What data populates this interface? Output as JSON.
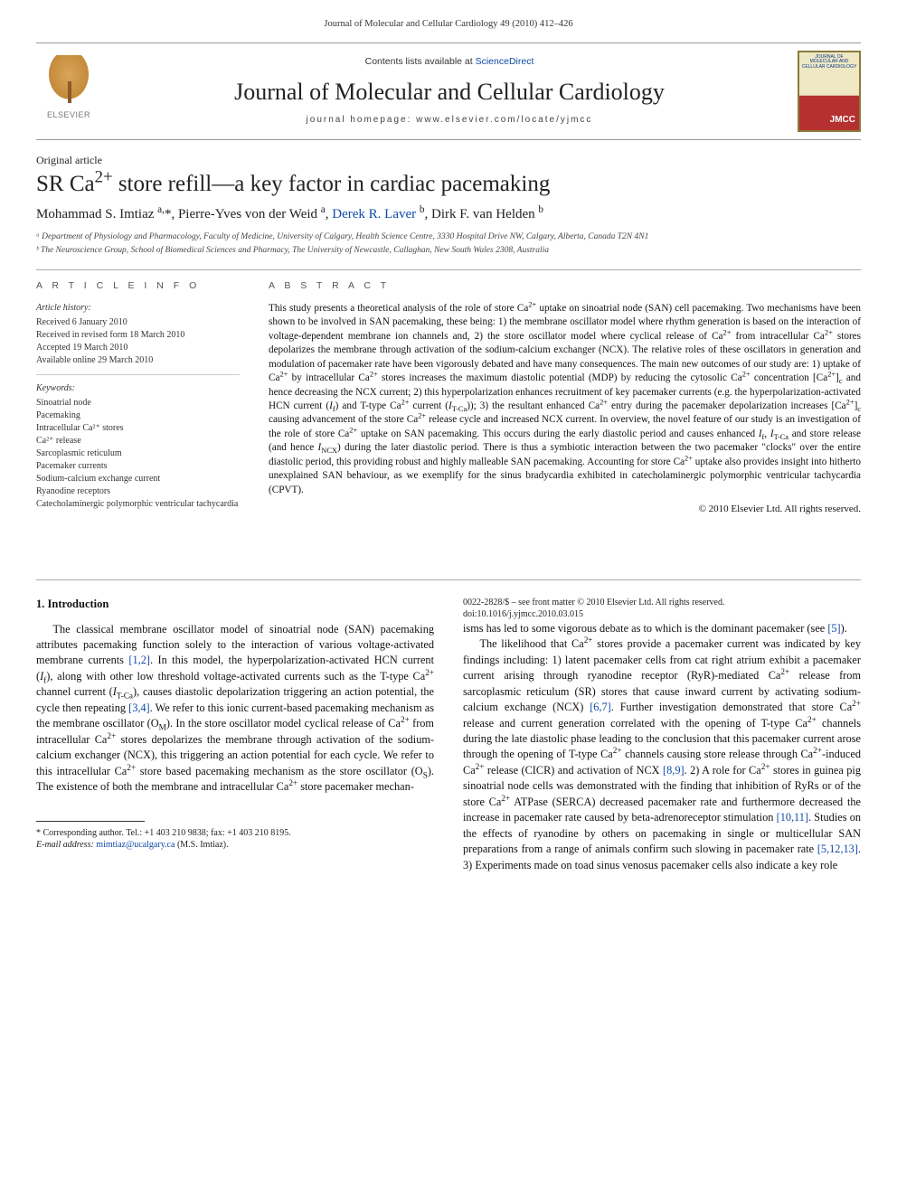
{
  "header": {
    "running": "Journal of Molecular and Cellular Cardiology 49 (2010) 412–426"
  },
  "masthead": {
    "elsevier": "ELSEVIER",
    "contents_line_pre": "Contents lists available at ",
    "sciencedirect": "ScienceDirect",
    "journal_name": "Journal of Molecular and Cellular Cardiology",
    "homepage_line": "journal homepage: www.elsevier.com/locate/yjmcc",
    "cover_caption": "JOURNAL OF MOLECULAR AND CELLULAR CARDIOLOGY"
  },
  "article": {
    "type": "Original article",
    "title_html": "SR Ca<sup>2+</sup> store refill—a key factor in cardiac pacemaking",
    "authors_html": "Mohammad S. Imtiaz <sup>a,</sup>*, Pierre-Yves von der Weid <sup>a</sup>, <a href=\"#\">Derek R. Laver</a> <sup>b</sup>, Dirk F. van Helden <sup>b</sup>",
    "affiliations": [
      "ᵃ Department of Physiology and Pharmacology, Faculty of Medicine, University of Calgary, Health Science Centre, 3330 Hospital Drive NW, Calgary, Alberta, Canada T2N 4N1",
      "ᵇ The Neuroscience Group, School of Biomedical Sciences and Pharmacy, The University of Newcastle, Callaghan, New South Wales 2308, Australia"
    ]
  },
  "meta": {
    "header": "A R T I C L E   I N F O",
    "history_label": "Article history:",
    "history": [
      "Received 6 January 2010",
      "Received in revised form 18 March 2010",
      "Accepted 19 March 2010",
      "Available online 29 March 2010"
    ],
    "keywords_label": "Keywords:",
    "keywords": [
      "Sinoatrial node",
      "Pacemaking",
      "Intracellular Ca²⁺ stores",
      "Ca²⁺ release",
      "Sarcoplasmic reticulum",
      "Pacemaker currents",
      "Sodium-calcium exchange current",
      "Ryanodine receptors",
      "Catecholaminergic polymorphic ventricular tachycardia"
    ]
  },
  "abstract": {
    "header": "A B S T R A C T",
    "text_html": "This study presents a theoretical analysis of the role of store Ca<sup>2+</sup> uptake on sinoatrial node (SAN) cell pacemaking. Two mechanisms have been shown to be involved in SAN pacemaking, these being: 1) the membrane oscillator model where rhythm generation is based on the interaction of voltage-dependent membrane ion channels and, 2) the store oscillator model where cyclical release of Ca<sup>2+</sup> from intracellular Ca<sup>2+</sup> stores depolarizes the membrane through activation of the sodium-calcium exchanger (NCX). The relative roles of these oscillators in generation and modulation of pacemaker rate have been vigorously debated and have many consequences. The main new outcomes of our study are: 1) uptake of Ca<sup>2+</sup> by intracellular Ca<sup>2+</sup> stores increases the maximum diastolic potential (MDP) by reducing the cytosolic Ca<sup>2+</sup> concentration [Ca<sup>2+</sup>]<sub>c</sub> and hence decreasing the NCX current; 2) this hyperpolarization enhances recruitment of key pacemaker currents (e.g. the hyperpolarization-activated HCN current (<i>I</i><sub>f</sub>) and T-type Ca<sup>2+</sup> current (<i>I</i><sub>T-Ca</sub>)); 3) the resultant enhanced Ca<sup>2+</sup> entry during the pacemaker depolarization increases [Ca<sup>2+</sup>]<sub>c</sub> causing advancement of the store Ca<sup>2+</sup> release cycle and increased NCX current. In overview, the novel feature of our study is an investigation of the role of store Ca<sup>2+</sup> uptake on SAN pacemaking. This occurs during the early diastolic period and causes enhanced <i>I</i><sub>f</sub>, <i>I</i><sub>T-Ca</sub> and store release (and hence <i>I</i><sub>NCX</sub>) during the later diastolic period. There is thus a symbiotic interaction between the two pacemaker \"clocks\" over the entire diastolic period, this providing robust and highly malleable SAN pacemaking. Accounting for store Ca<sup>2+</sup> uptake also provides insight into hitherto unexplained SAN behaviour, as we exemplify for the sinus bradycardia exhibited in catecholaminergic polymorphic ventricular tachycardia (CPVT).",
    "copyright": "© 2010 Elsevier Ltd. All rights reserved."
  },
  "body": {
    "section_head": "1. Introduction",
    "p1_html": "The classical membrane oscillator model of sinoatrial node (SAN) pacemaking attributes pacemaking function solely to the interaction of various voltage-activated membrane currents <a class=\"cite\" href=\"#\">[1,2]</a>. In this model, the hyperpolarization-activated HCN current (<i>I</i><sub>f</sub>), along with other low threshold voltage-activated currents such as the T-type Ca<sup>2+</sup> channel current (<i>I</i><sub>T-Ca</sub>), causes diastolic depolarization triggering an action potential, the cycle then repeating <a class=\"cite\" href=\"#\">[3,4]</a>. We refer to this ionic current-based pacemaking mechanism as the membrane oscillator (O<sub>M</sub>). In the store oscillator model cyclical release of Ca<sup>2+</sup> from intracellular Ca<sup>2+</sup> stores depolarizes the membrane through activation of the sodium-calcium exchanger (NCX), this triggering an action potential for each cycle. We refer to this intracellular Ca<sup>2+</sup> store based pacemaking mechanism as the store oscillator (O<sub>S</sub>). The existence of both the membrane and intracellular Ca<sup>2+</sup> store pacemaker mechan-",
    "p2_html": "isms has led to some vigorous debate as to which is the dominant pacemaker (see <a class=\"cite\" href=\"#\">[5]</a>).",
    "p3_html": "The likelihood that Ca<sup>2+</sup> stores provide a pacemaker current was indicated by key findings including: 1) latent pacemaker cells from cat right atrium exhibit a pacemaker current arising through ryanodine receptor (RyR)-mediated Ca<sup>2+</sup> release from sarcoplasmic reticulum (SR) stores that cause inward current by activating sodium-calcium exchange (NCX) <a class=\"cite\" href=\"#\">[6,7]</a>. Further investigation demonstrated that store Ca<sup>2+</sup> release and current generation correlated with the opening of T-type Ca<sup>2+</sup> channels during the late diastolic phase leading to the conclusion that this pacemaker current arose through the opening of T-type Ca<sup>2+</sup> channels causing store release through Ca<sup>2+</sup>-induced Ca<sup>2+</sup> release (CICR) and activation of NCX <a class=\"cite\" href=\"#\">[8,9]</a>. 2) A role for Ca<sup>2+</sup> stores in guinea pig sinoatrial node cells was demonstrated with the finding that inhibition of RyRs or of the store Ca<sup>2+</sup> ATPase (SERCA) decreased pacemaker rate and furthermore decreased the increase in pacemaker rate caused by beta-adrenoreceptor stimulation <a class=\"cite\" href=\"#\">[10,11]</a>. Studies on the effects of ryanodine by others on pacemaking in single or multicellular SAN preparations from a range of animals confirm such slowing in pacemaker rate <a class=\"cite\" href=\"#\">[5,12,13]</a>. 3) Experiments made on toad sinus venosus pacemaker cells also indicate a key role"
  },
  "footnote": {
    "corr_html": "* Corresponding author. Tel.: +1 403 210 9838; fax: +1 403 210 8195.",
    "email_label": "E-mail address:",
    "email": "mimtiaz@ucalgary.ca",
    "email_who": "(M.S. Imtiaz)."
  },
  "pubfooter": {
    "line1": "0022-2828/$ – see front matter © 2010 Elsevier Ltd. All rights reserved.",
    "line2": "doi:10.1016/j.yjmcc.2010.03.015"
  },
  "colors": {
    "link": "#0f4aa8",
    "rule": "#aaaaaa"
  }
}
